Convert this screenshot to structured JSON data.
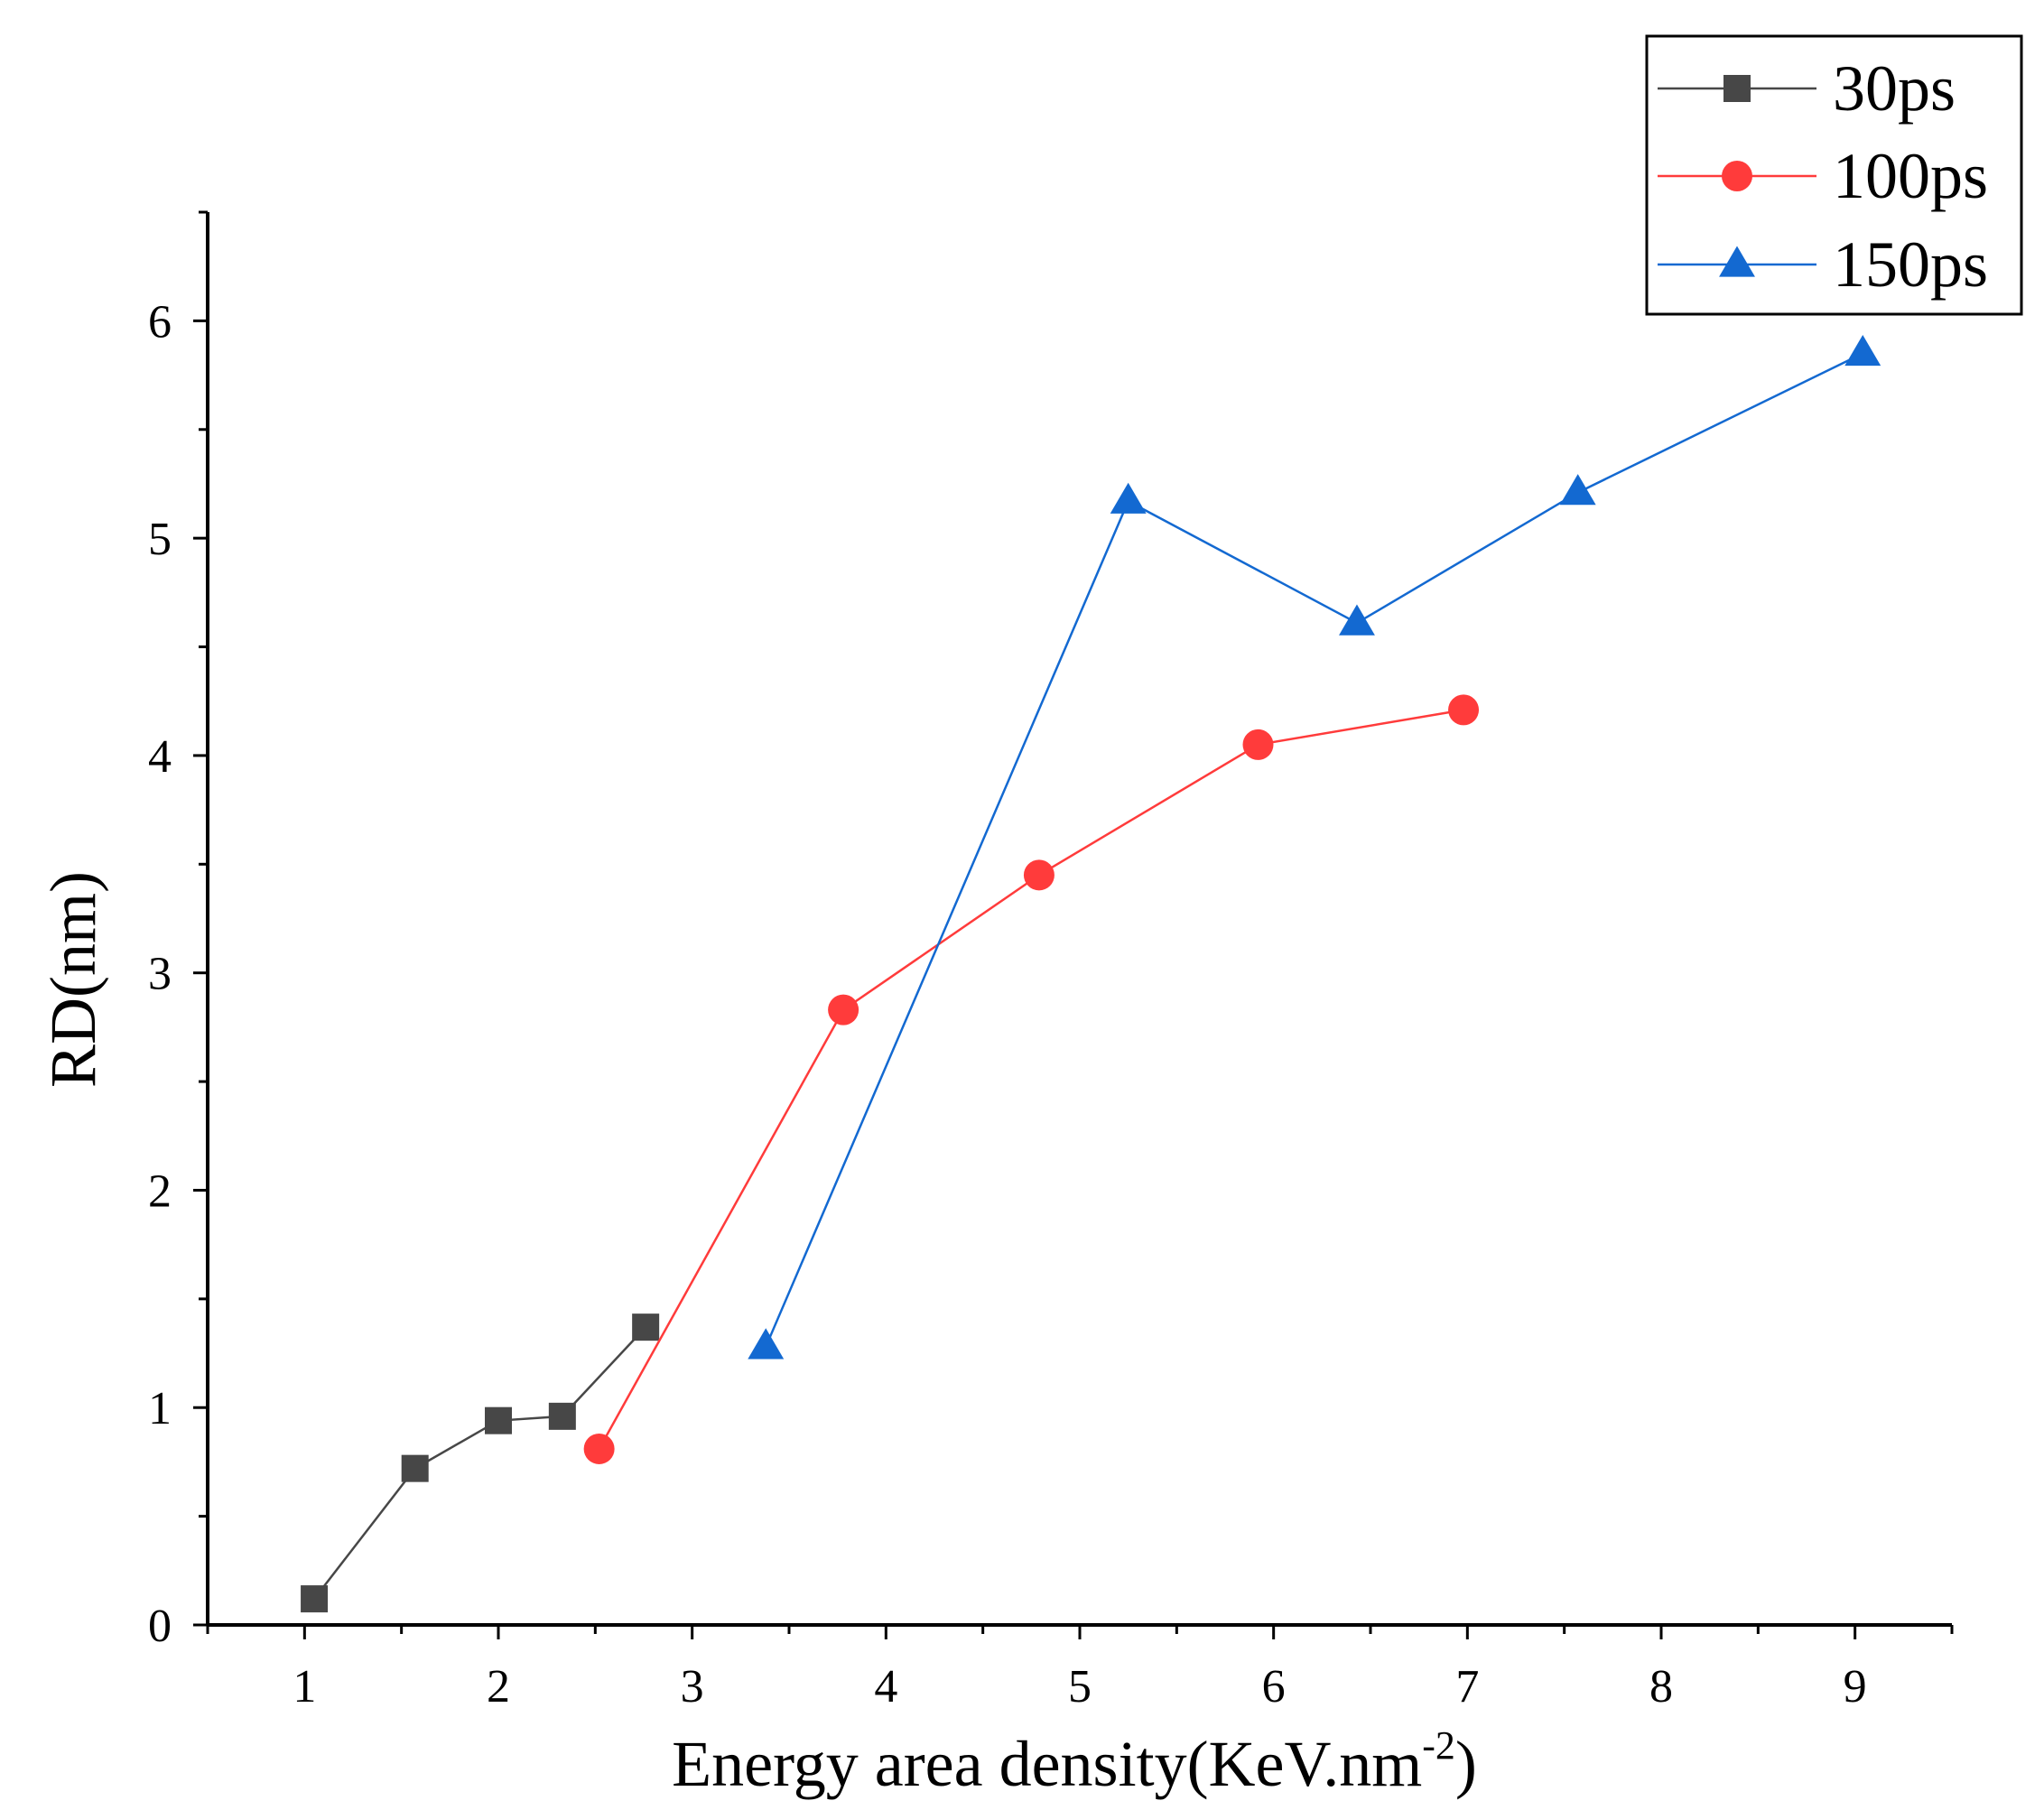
{
  "chart_data": {
    "type": "line",
    "xlabel": "Energy area density(KeV.nm",
    "xlabel_sup": "-2",
    "xlabel_close": ")",
    "ylabel": "RD(nm)",
    "xlim": [
      0.5,
      9.5
    ],
    "ylim": [
      0,
      6.5
    ],
    "xticks": [
      "1",
      "2",
      "3",
      "4",
      "5",
      "6",
      "7",
      "8",
      "9"
    ],
    "yticks": [
      "0",
      "1",
      "2",
      "3",
      "4",
      "5",
      "6"
    ],
    "legend_position": "top-right",
    "series": [
      {
        "name": "30ps",
        "color": "#474747",
        "marker": "square",
        "x": [
          1.05,
          1.57,
          2.0,
          2.33,
          2.76
        ],
        "y": [
          0.12,
          0.72,
          0.94,
          0.96,
          1.37
        ]
      },
      {
        "name": "100ps",
        "color": "#ff3b3b",
        "marker": "circle",
        "x": [
          2.52,
          3.78,
          4.79,
          5.92,
          6.98
        ],
        "y": [
          0.81,
          2.83,
          3.45,
          4.05,
          4.21
        ]
      },
      {
        "name": "150ps",
        "color": "#1369d1",
        "marker": "triangle",
        "x": [
          3.38,
          5.25,
          6.43,
          7.57,
          9.04
        ],
        "y": [
          1.28,
          5.17,
          4.61,
          5.21,
          5.85
        ]
      }
    ]
  }
}
